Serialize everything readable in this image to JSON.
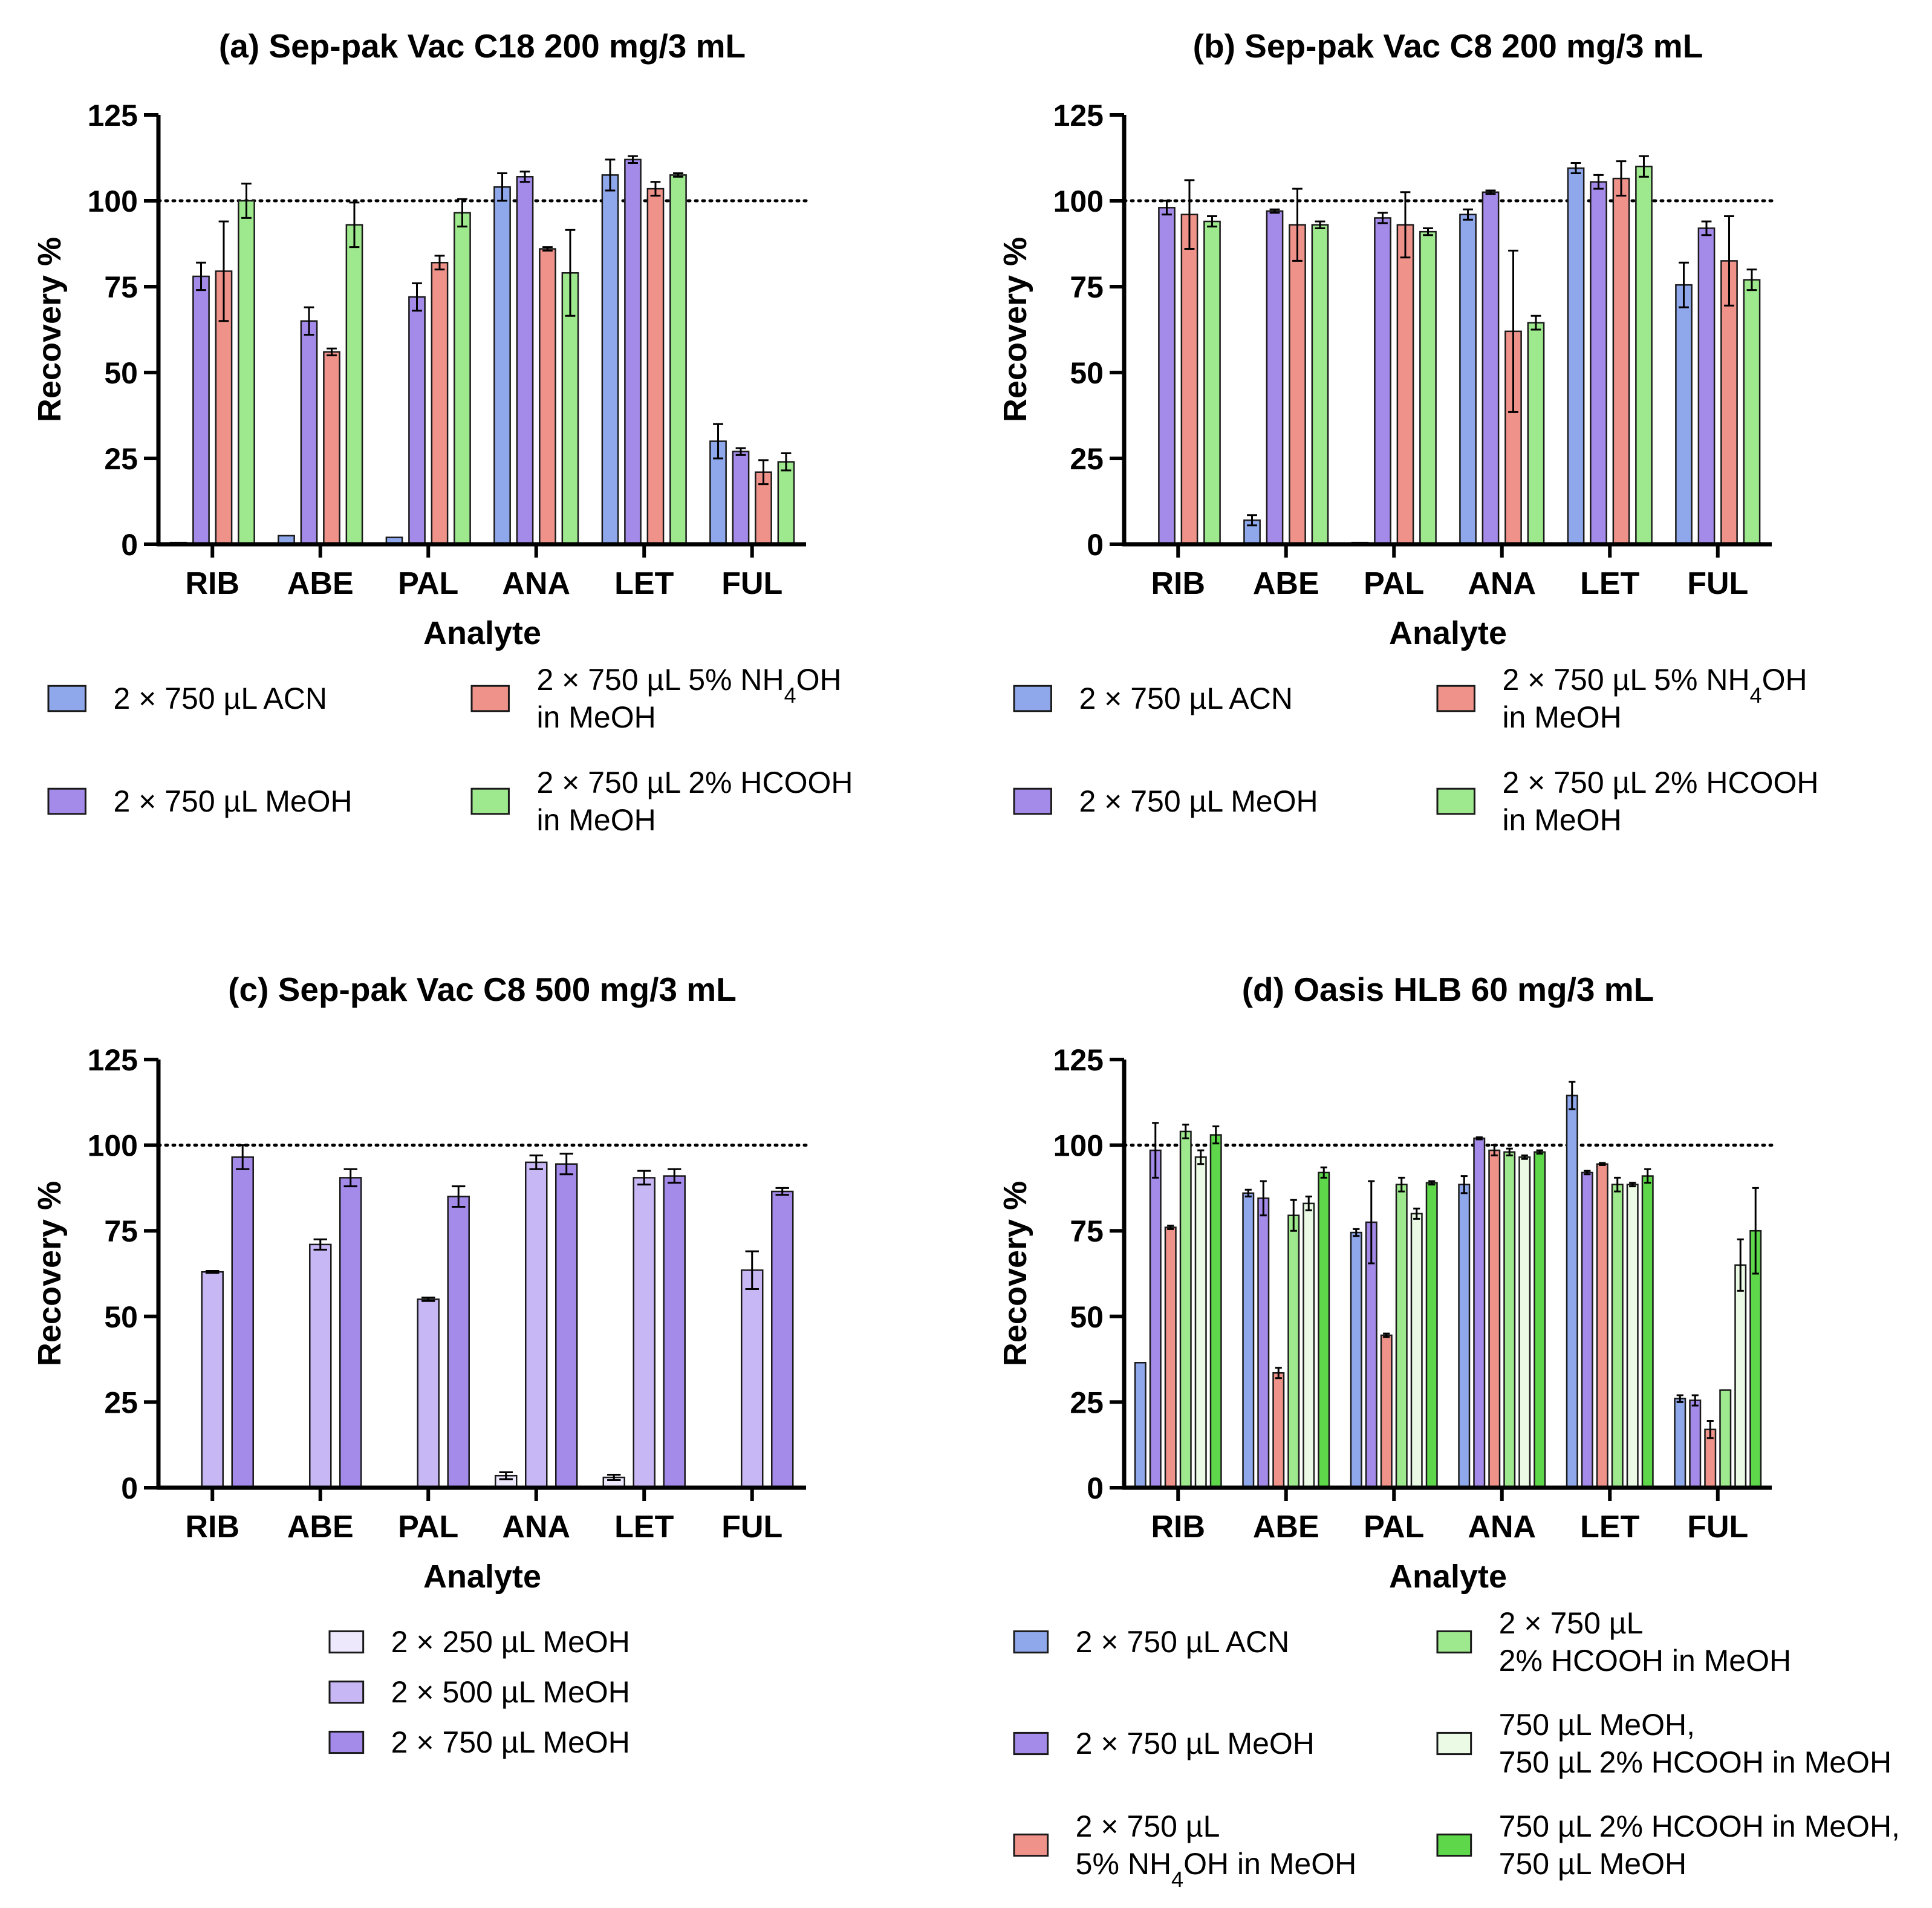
{
  "chart_data": [
    {
      "panel": "a",
      "type": "bar",
      "title": "(a) Sep-pak Vac C18 200 mg/3 mL",
      "xlabel": "Analyte",
      "ylabel": "Recovery %",
      "ylim": [
        0,
        125
      ],
      "yticks": [
        "0",
        "25",
        "50",
        "75",
        "100",
        "125"
      ],
      "reference_line": 100,
      "categories": [
        "RIB",
        "ABE",
        "PAL",
        "ANA",
        "LET",
        "FUL"
      ],
      "legend_layout": "grid-2col",
      "series": [
        {
          "name": "2 × 750 µL ACN",
          "color": "#8fa8ec",
          "values": [
            0.5,
            2.5,
            2,
            104,
            107.5,
            30
          ],
          "errors": [
            0,
            0,
            0,
            4,
            4.5,
            5
          ]
        },
        {
          "name": "2 × 750 µL MeOH",
          "color": "#a48ae9",
          "values": [
            78,
            65,
            72,
            107,
            112,
            27
          ],
          "errors": [
            4,
            4,
            4,
            1.5,
            1,
            1
          ]
        },
        {
          "name": "2 × 750 µL 5% NH4OH in MeOH",
          "color": "#ef928a",
          "values": [
            79.5,
            56,
            82,
            86,
            103.5,
            21
          ],
          "errors": [
            14.5,
            1,
            2,
            0.5,
            2,
            3.5
          ]
        },
        {
          "name": "2 × 750 µL 2% HCOOH in MeOH",
          "color": "#9ee88d",
          "values": [
            100,
            93,
            96.5,
            79,
            107.5,
            24
          ],
          "errors": [
            5,
            6.5,
            4,
            12.5,
            0.5,
            2.5
          ]
        }
      ],
      "legend": [
        {
          "label": "2 × 750 µL ACN",
          "color": "#8fa8ec"
        },
        {
          "label": "2 × 750 µL 5% NH",
          "sub": "4",
          "tail": "OH",
          "label2": "in MeOH",
          "color": "#ef928a"
        },
        {
          "label": "2 × 750 µL MeOH",
          "color": "#a48ae9"
        },
        {
          "label": "2 × 750 µL 2% HCOOH",
          "label2": "in MeOH",
          "color": "#9ee88d"
        }
      ]
    },
    {
      "panel": "b",
      "type": "bar",
      "title": "(b) Sep-pak Vac C8 200 mg/3 mL",
      "xlabel": "Analyte",
      "ylabel": "Recovery %",
      "ylim": [
        0,
        125
      ],
      "yticks": [
        "0",
        "25",
        "50",
        "75",
        "100",
        "125"
      ],
      "reference_line": 100,
      "categories": [
        "RIB",
        "ABE",
        "PAL",
        "ANA",
        "LET",
        "FUL"
      ],
      "legend_layout": "grid-2col",
      "series": [
        {
          "name": "2 × 750 µL ACN",
          "color": "#8fa8ec",
          "values": [
            0,
            7,
            0.5,
            96,
            109.5,
            75.5
          ],
          "errors": [
            0,
            1.5,
            0,
            1.5,
            1.5,
            6.5
          ]
        },
        {
          "name": "2 × 750 µL MeOH",
          "color": "#a48ae9",
          "values": [
            98,
            97,
            95,
            102.5,
            105.5,
            92
          ],
          "errors": [
            2,
            0.5,
            1.5,
            0.5,
            2,
            2
          ]
        },
        {
          "name": "2 × 750 µL 5% NH4OH in MeOH",
          "color": "#ef928a",
          "values": [
            96,
            93,
            93,
            62,
            106.5,
            82.5
          ],
          "errors": [
            10,
            10.5,
            9.5,
            23.5,
            5,
            13
          ]
        },
        {
          "name": "2 × 750 µL 2% HCOOH in MeOH",
          "color": "#9ee88d",
          "values": [
            94,
            93,
            91,
            64.5,
            110,
            77
          ],
          "errors": [
            1.5,
            1,
            1,
            2,
            3,
            3
          ]
        }
      ],
      "legend": [
        {
          "label": "2 × 750 µL ACN",
          "color": "#8fa8ec"
        },
        {
          "label": "2 × 750 µL 5% NH",
          "sub": "4",
          "tail": "OH",
          "label2": "in MeOH",
          "color": "#ef928a"
        },
        {
          "label": "2 × 750 µL MeOH",
          "color": "#a48ae9"
        },
        {
          "label": "2 × 750 µL 2% HCOOH",
          "label2": "in MeOH",
          "color": "#9ee88d"
        }
      ]
    },
    {
      "panel": "c",
      "type": "bar",
      "title": "(c) Sep-pak Vac C8 500 mg/3 mL",
      "xlabel": "Analyte",
      "ylabel": "Recovery %",
      "ylim": [
        0,
        125
      ],
      "yticks": [
        "0",
        "25",
        "50",
        "75",
        "100",
        "125"
      ],
      "reference_line": 100,
      "categories": [
        "RIB",
        "ABE",
        "PAL",
        "ANA",
        "LET",
        "FUL"
      ],
      "legend_layout": "column",
      "series": [
        {
          "name": "2 × 250 µL MeOH",
          "color": "#ede8fc",
          "values": [
            0,
            0,
            0,
            3.5,
            3,
            0.3
          ],
          "errors": [
            0,
            0,
            0,
            1,
            0.8,
            0
          ]
        },
        {
          "name": "2 × 500 µL MeOH",
          "color": "#c7b7f4",
          "values": [
            63,
            71,
            55,
            95,
            90.5,
            63.5
          ],
          "errors": [
            0.3,
            1.5,
            0.5,
            2,
            2,
            5.5
          ]
        },
        {
          "name": "2 × 750 µL MeOH",
          "color": "#a48ae9",
          "values": [
            96.5,
            90.5,
            85,
            94.5,
            91,
            86.5
          ],
          "errors": [
            3.5,
            2.5,
            3,
            3,
            2,
            1
          ]
        }
      ],
      "legend": [
        {
          "label": "2 × 250 µL MeOH",
          "color": "#ede8fc"
        },
        {
          "label": "2 × 500 µL MeOH",
          "color": "#c7b7f4"
        },
        {
          "label": "2 × 750 µL MeOH",
          "color": "#a48ae9"
        }
      ]
    },
    {
      "panel": "d",
      "type": "bar",
      "title": "(d) Oasis HLB 60 mg/3 mL",
      "xlabel": "Analyte",
      "ylabel": "Recovery %",
      "ylim": [
        0,
        125
      ],
      "yticks": [
        "0",
        "25",
        "50",
        "75",
        "100",
        "125"
      ],
      "reference_line": 100,
      "categories": [
        "RIB",
        "ABE",
        "PAL",
        "ANA",
        "LET",
        "FUL"
      ],
      "legend_layout": "grid-2col",
      "series": [
        {
          "name": "2 × 750 µL ACN",
          "color": "#8fa8ec",
          "values": [
            36.5,
            86,
            74.5,
            88.5,
            114.5,
            26
          ],
          "errors": [
            0,
            1,
            1,
            2.5,
            4,
            1
          ]
        },
        {
          "name": "2 × 750 µL MeOH",
          "color": "#a48ae9",
          "values": [
            98.5,
            84.5,
            77.5,
            102,
            92,
            25.5
          ],
          "errors": [
            8,
            5,
            12,
            0.3,
            0.5,
            1.5
          ]
        },
        {
          "name": "2 × 750 µL 5% NH4OH in MeOH",
          "color": "#ef928a",
          "values": [
            76,
            33.5,
            44.5,
            98.5,
            94.5,
            17
          ],
          "errors": [
            0.5,
            1.5,
            0.5,
            1.5,
            0.3,
            2.5
          ]
        },
        {
          "name": "2 × 750 µL 2% HCOOH in MeOH",
          "color": "#9ee88d",
          "values": [
            104,
            79.5,
            88.5,
            98,
            88.5,
            28.5
          ],
          "errors": [
            2,
            4.5,
            2,
            1,
            2,
            0
          ]
        },
        {
          "name": "750 µL MeOH, 750 µL 2% HCOOH in MeOH",
          "color": "#eafae5",
          "values": [
            96.5,
            83,
            80,
            96.5,
            88.5,
            65
          ],
          "errors": [
            2,
            2,
            1.5,
            0.5,
            0.5,
            7.5
          ]
        },
        {
          "name": "750 µL 2% HCOOH in MeOH, 750 µL MeOH",
          "color": "#5ed84a",
          "values": [
            103,
            92,
            89,
            98,
            91,
            75
          ],
          "errors": [
            2.5,
            1.5,
            0.5,
            0.5,
            2,
            12.5
          ]
        }
      ],
      "legend": [
        {
          "label": "2 × 750 µL ACN",
          "color": "#8fa8ec"
        },
        {
          "label": "2 × 750 µL",
          "label2": "2% HCOOH in MeOH",
          "color": "#9ee88d"
        },
        {
          "label": "2 × 750 µL MeOH",
          "color": "#a48ae9"
        },
        {
          "label": "750 µL MeOH,",
          "label2": "750 µL 2% HCOOH in MeOH",
          "color": "#eafae5"
        },
        {
          "label": "2 × 750 µL",
          "label2": "5% NH",
          "sub2": "4",
          "tail2": "OH in MeOH",
          "color": "#ef928a"
        },
        {
          "label": "750 µL 2% HCOOH in MeOH,",
          "label2": "750 µL MeOH",
          "color": "#5ed84a"
        }
      ]
    }
  ]
}
